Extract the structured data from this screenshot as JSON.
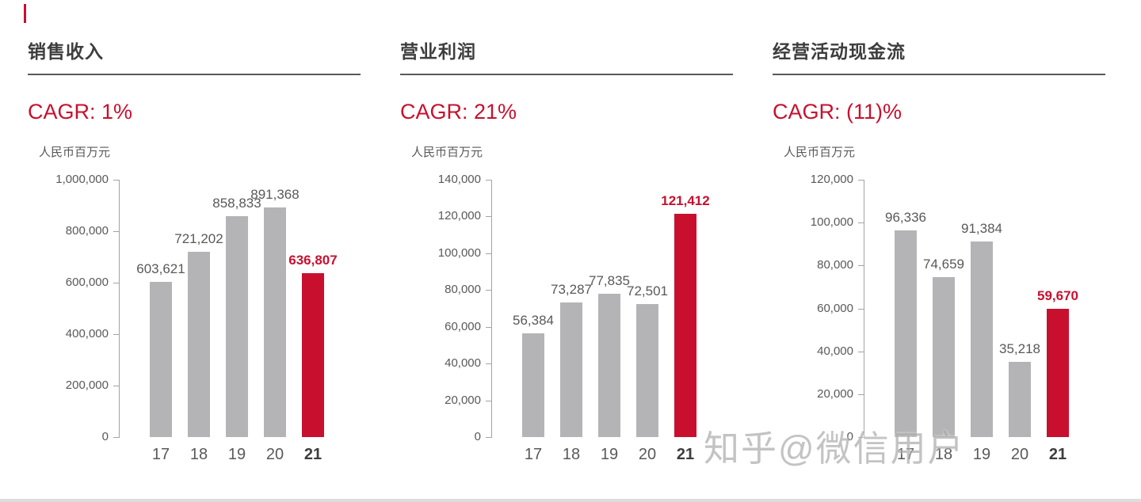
{
  "colors": {
    "highlight": "#c8102e",
    "bar": "#b4b4b6",
    "axis": "#a3a3a3",
    "text": "#595959",
    "title": "#3d3d3d"
  },
  "watermark": {
    "text": "知乎@微信用户"
  },
  "chart_data": [
    {
      "type": "bar",
      "title": "销售收入",
      "subtitle": "CAGR: 1%",
      "xlabel": "",
      "ylabel": "人民币百万元",
      "categories": [
        "17",
        "18",
        "19",
        "20",
        "21"
      ],
      "values": [
        603621,
        721202,
        858833,
        891368,
        636807
      ],
      "data_labels": [
        "603,621",
        "721,202",
        "858,833",
        "891,368",
        "636,807"
      ],
      "highlight_index": 4,
      "ylim": [
        0,
        1000000
      ],
      "ytick_step": 200000,
      "ytick_labels": [
        "0",
        "200,000",
        "400,000",
        "600,000",
        "800,000",
        "1,000,000"
      ],
      "grid": false,
      "legend": "none"
    },
    {
      "type": "bar",
      "title": "营业利润",
      "subtitle": "CAGR: 21%",
      "xlabel": "",
      "ylabel": "人民币百万元",
      "categories": [
        "17",
        "18",
        "19",
        "20",
        "21"
      ],
      "values": [
        56384,
        73287,
        77835,
        72501,
        121412
      ],
      "data_labels": [
        "56,384",
        "73,287",
        "77,835",
        "72,501",
        "121,412"
      ],
      "highlight_index": 4,
      "ylim": [
        0,
        140000
      ],
      "ytick_step": 20000,
      "ytick_labels": [
        "0",
        "20,000",
        "40,000",
        "60,000",
        "80,000",
        "100,000",
        "120,000",
        "140,000"
      ],
      "grid": false,
      "legend": "none"
    },
    {
      "type": "bar",
      "title": "经营活动现金流",
      "subtitle": "CAGR: (11)%",
      "xlabel": "",
      "ylabel": "人民币百万元",
      "categories": [
        "17",
        "18",
        "19",
        "20",
        "21"
      ],
      "values": [
        96336,
        74659,
        91384,
        35218,
        59670
      ],
      "data_labels": [
        "96,336",
        "74,659",
        "91,384",
        "35,218",
        "59,670"
      ],
      "highlight_index": 4,
      "ylim": [
        0,
        120000
      ],
      "ytick_step": 20000,
      "ytick_labels": [
        "0",
        "20,000",
        "40,000",
        "60,000",
        "80,000",
        "100,000",
        "120,000"
      ],
      "grid": false,
      "legend": "none"
    }
  ]
}
